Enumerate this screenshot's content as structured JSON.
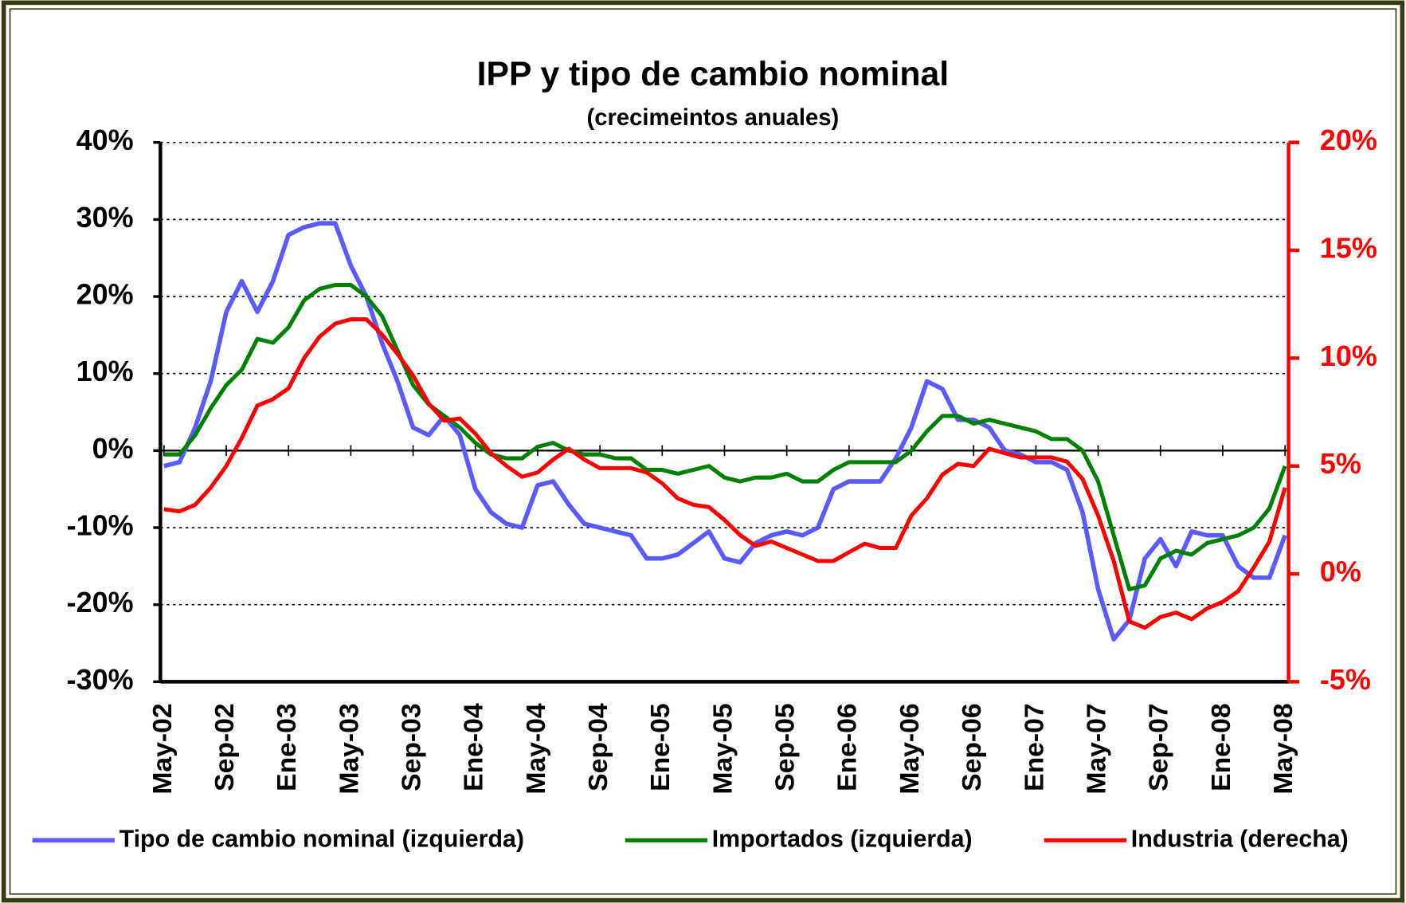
{
  "chart_data": {
    "type": "line",
    "title": "IPP y tipo de cambio nominal",
    "subtitle": "(crecimeintos anuales)",
    "categories": [
      "May-02",
      null,
      null,
      null,
      "Sep-02",
      null,
      null,
      null,
      "Ene-03",
      null,
      null,
      null,
      "May-03",
      null,
      null,
      null,
      "Sep-03",
      null,
      null,
      null,
      "Ene-04",
      null,
      null,
      null,
      "May-04",
      null,
      null,
      null,
      "Sep-04",
      null,
      null,
      null,
      "Ene-05",
      null,
      null,
      null,
      "May-05",
      null,
      null,
      null,
      "Sep-05",
      null,
      null,
      null,
      "Ene-06",
      null,
      null,
      null,
      "May-06",
      null,
      null,
      null,
      "Sep-06",
      null,
      null,
      null,
      "Ene-07",
      null,
      null,
      null,
      "May-07",
      null,
      null,
      null,
      "Sep-07",
      null,
      null,
      null,
      "Ene-08",
      null,
      null,
      null,
      "May-08"
    ],
    "series": [
      {
        "name": "Tipo de cambio nominal (izquierda)",
        "color": "#5a5aff",
        "axis": "y",
        "values": [
          -2,
          -1.5,
          3,
          9,
          18,
          22,
          18,
          22,
          28,
          29,
          29.5,
          29.5,
          24,
          20,
          14,
          9,
          3,
          2,
          4.5,
          2,
          -5,
          -8,
          -9.5,
          -10,
          -4.5,
          -4,
          -7,
          -9.5,
          -10,
          -10.5,
          -11,
          -14,
          -14,
          -13.5,
          -12,
          -10.5,
          -14,
          -14.5,
          -12,
          -11,
          -10.5,
          -11,
          -10,
          -5,
          -4,
          -4,
          -4,
          -1,
          3,
          9,
          8,
          4,
          4,
          3,
          0,
          -0.5,
          -1.5,
          -1.5,
          -2.5,
          -8,
          -18,
          -24.5,
          -22,
          -14,
          -11.5,
          -15,
          -10.5,
          -11,
          -11,
          -15,
          -16.5,
          -16.5,
          -11
        ]
      },
      {
        "name": "Importados (izquierda)",
        "color": "#008000",
        "axis": "y",
        "values": [
          -0.5,
          -0.5,
          2,
          5.5,
          8.5,
          10.5,
          14.5,
          14,
          16,
          19.5,
          21,
          21.5,
          21.5,
          20,
          17.5,
          13,
          8.5,
          6,
          4.5,
          3,
          1,
          -0.5,
          -1,
          -1,
          0.5,
          1,
          0,
          -0.5,
          -0.5,
          -1,
          -1,
          -2.5,
          -2.5,
          -3,
          -2.5,
          -2,
          -3.5,
          -4,
          -3.5,
          -3.5,
          -3,
          -4,
          -4,
          -2.5,
          -1.5,
          -1.5,
          -1.5,
          -1.5,
          0,
          2.5,
          4.5,
          4.5,
          3.5,
          4,
          3.5,
          3,
          2.5,
          1.5,
          1.5,
          0,
          -4,
          -11,
          -18,
          -17.5,
          -14,
          -13,
          -13.5,
          -12,
          -11.5,
          -11,
          -10,
          -7.5,
          -2
        ]
      },
      {
        "name": "Industria (derecha)",
        "color": "#ff0000",
        "axis": "y2",
        "values": [
          3,
          2.9,
          3.2,
          4,
          5,
          6.3,
          7.8,
          8.1,
          8.6,
          10,
          11,
          11.6,
          11.8,
          11.8,
          11.1,
          10.2,
          9.2,
          7.9,
          7.1,
          7.2,
          6.5,
          5.6,
          5,
          4.5,
          4.7,
          5.3,
          5.8,
          5.3,
          4.9,
          4.9,
          4.9,
          4.7,
          4.2,
          3.5,
          3.2,
          3.1,
          2.5,
          1.8,
          1.3,
          1.5,
          1.2,
          0.9,
          0.6,
          0.6,
          1,
          1.4,
          1.2,
          1.2,
          2.7,
          3.5,
          4.6,
          5.1,
          5,
          5.8,
          5.6,
          5.4,
          5.4,
          5.4,
          5.2,
          4.4,
          2.7,
          0.6,
          -2.2,
          -2.5,
          -2,
          -1.8,
          -2.1,
          -1.6,
          -1.3,
          -0.8,
          0.3,
          1.5,
          4
        ]
      }
    ],
    "ylim": [
      -30,
      40
    ],
    "yticks": [
      {
        "value": -30,
        "label": "-30%"
      },
      {
        "value": -20,
        "label": "-20%"
      },
      {
        "value": -10,
        "label": "-10%"
      },
      {
        "value": 0,
        "label": "0%"
      },
      {
        "value": 10,
        "label": "10%"
      },
      {
        "value": 20,
        "label": "20%"
      },
      {
        "value": 30,
        "label": "30%"
      },
      {
        "value": 40,
        "label": "40%"
      }
    ],
    "y2lim": [
      -5,
      20
    ],
    "y2ticks": [
      {
        "value": -5,
        "label": "-5%"
      },
      {
        "value": 0,
        "label": "0%"
      },
      {
        "value": 5,
        "label": "5%"
      },
      {
        "value": 10,
        "label": "10%"
      },
      {
        "value": 15,
        "label": "15%"
      },
      {
        "value": 20,
        "label": "20%"
      }
    ],
    "grid": true,
    "legend": "bottom"
  }
}
